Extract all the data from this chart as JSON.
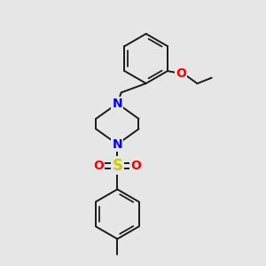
{
  "background_color": "#e6e6e6",
  "bond_color": "#1a1a1a",
  "bond_width": 1.4,
  "atom_colors": {
    "N": "#0000ff",
    "O": "#ff0000",
    "S": "#cccc00",
    "C": "#1a1a1a"
  },
  "font_size": 9,
  "fig_size": [
    3.0,
    3.0
  ],
  "dpi": 100,
  "xlim": [
    0,
    10
  ],
  "ylim": [
    0,
    10
  ]
}
